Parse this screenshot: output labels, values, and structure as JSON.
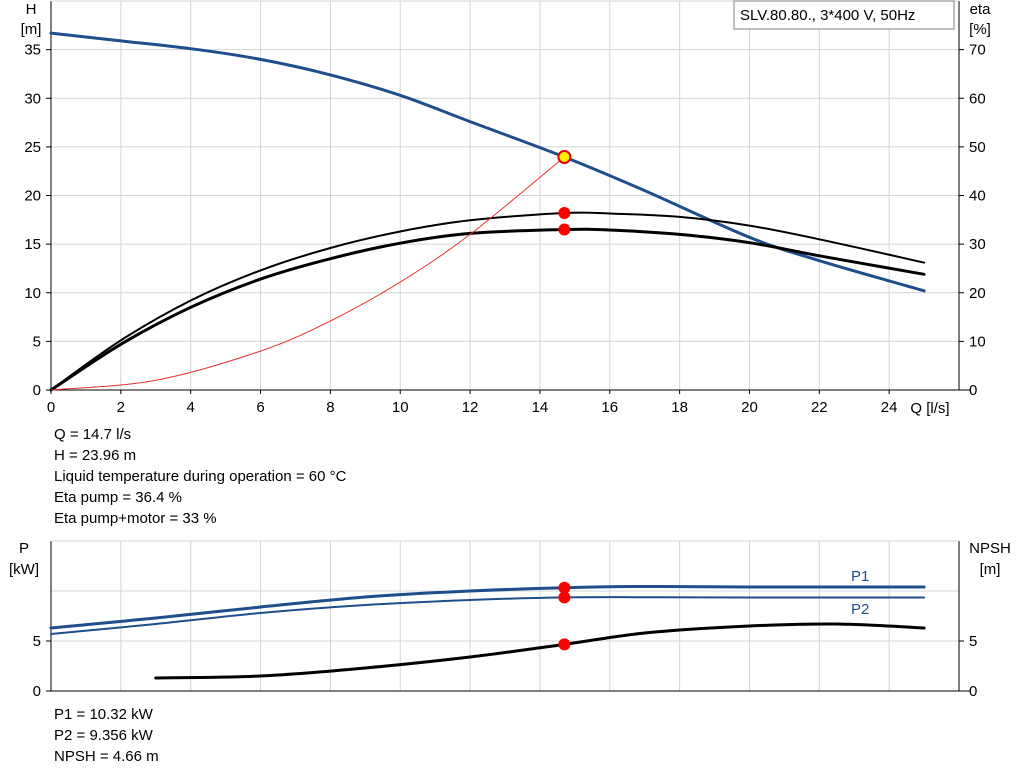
{
  "chart_data": [
    {
      "type": "line",
      "title": "SLV.80.80., 3*400 V, 50Hz",
      "xlabel": "Q [l/s]",
      "ylabel_left": [
        "H",
        "[m]"
      ],
      "ylabel_right": [
        "eta",
        "[%]"
      ],
      "xlim": [
        0,
        26
      ],
      "ylim_left": [
        0,
        40
      ],
      "ylim_right": [
        0,
        80
      ],
      "xticks": [
        "0",
        "2",
        "4",
        "6",
        "8",
        "10",
        "12",
        "14",
        "16",
        "18",
        "20",
        "22",
        "24"
      ],
      "yticks_left": [
        "0",
        "5",
        "10",
        "15",
        "20",
        "25",
        "30",
        "35"
      ],
      "yticks_right": [
        "0",
        "10",
        "20",
        "30",
        "40",
        "50",
        "60",
        "70"
      ],
      "grid": true,
      "series": [
        {
          "key": "head",
          "axis": "left",
          "color": "#1f4e8c",
          "x": [
            0,
            2,
            4,
            6,
            8,
            10,
            12,
            14.7,
            17,
            20,
            22,
            25
          ],
          "y": [
            36.7,
            35.9,
            35.1,
            34.0,
            32.4,
            30.3,
            27.6,
            23.96,
            20.5,
            15.7,
            13.3,
            10.2
          ]
        },
        {
          "key": "eta_pump",
          "axis": "right",
          "color": "#000000",
          "x": [
            0,
            2,
            4,
            6,
            8,
            10,
            12,
            14.7,
            16,
            18,
            20,
            22,
            25
          ],
          "y": [
            0,
            10.2,
            18.4,
            24.6,
            29.2,
            32.6,
            34.9,
            36.4,
            36.3,
            35.6,
            33.8,
            31.0,
            26.2
          ]
        },
        {
          "key": "eta_total",
          "axis": "right",
          "color": "#000000",
          "x": [
            0,
            2,
            4,
            6,
            8,
            10,
            12,
            14.7,
            16,
            18,
            20,
            22,
            25
          ],
          "y": [
            0,
            9.4,
            17.0,
            22.8,
            27.0,
            30.2,
            32.2,
            33.0,
            32.9,
            32.0,
            30.3,
            27.6,
            23.8
          ]
        },
        {
          "key": "system",
          "axis": "left",
          "color": "#e83030",
          "x": [
            0,
            3,
            6,
            8,
            10,
            12,
            14.7
          ],
          "y": [
            0,
            1.0,
            4.0,
            7.1,
            11.1,
            16.0,
            23.96
          ]
        }
      ],
      "points": [
        {
          "key": "duty",
          "axis": "left",
          "x": 14.7,
          "y": 23.96,
          "fill": "#ffef00",
          "stroke": "#e00000"
        },
        {
          "key": "eta_pump_pt",
          "axis": "right",
          "x": 14.7,
          "y": 36.4,
          "fill": "#ff0000",
          "stroke": "#ff0000"
        },
        {
          "key": "eta_total_pt",
          "axis": "right",
          "x": 14.7,
          "y": 33.0,
          "fill": "#ff0000",
          "stroke": "#ff0000"
        }
      ]
    },
    {
      "type": "line",
      "ylabel_left": [
        "P",
        "[kW]"
      ],
      "ylabel_right": [
        "NPSH",
        "[m]"
      ],
      "xlim": [
        0,
        26
      ],
      "ylim_left": [
        0,
        15
      ],
      "ylim_right": [
        0,
        15
      ],
      "yticks_left": [
        "0",
        "5"
      ],
      "yticks_right": [
        "0",
        "5"
      ],
      "grid": true,
      "series": [
        {
          "key": "p1",
          "name": "P1",
          "axis": "left",
          "color": "#1f4e8c",
          "x": [
            0,
            3,
            6,
            9,
            12,
            14.7,
            17,
            20,
            25
          ],
          "y": [
            6.3,
            7.3,
            8.4,
            9.4,
            10.0,
            10.32,
            10.45,
            10.4,
            10.4
          ]
        },
        {
          "key": "p2",
          "name": "P2",
          "axis": "left",
          "color": "#1f4e8c",
          "x": [
            0,
            3,
            6,
            9,
            12,
            14.7,
            17,
            20,
            25
          ],
          "y": [
            5.7,
            6.7,
            7.8,
            8.6,
            9.1,
            9.356,
            9.38,
            9.35,
            9.35
          ]
        },
        {
          "key": "npsh",
          "axis": "right",
          "color": "#000000",
          "x": [
            3,
            6,
            9,
            12,
            14.7,
            17,
            20,
            22.5,
            25
          ],
          "y": [
            1.3,
            1.5,
            2.3,
            3.4,
            4.66,
            5.8,
            6.5,
            6.7,
            6.3
          ]
        }
      ],
      "points": [
        {
          "key": "p1_pt",
          "axis": "left",
          "x": 14.7,
          "y": 10.32,
          "fill": "#ff0000",
          "stroke": "#ff0000"
        },
        {
          "key": "p2_pt",
          "axis": "left",
          "x": 14.7,
          "y": 9.356,
          "fill": "#ff0000",
          "stroke": "#ff0000"
        },
        {
          "key": "npsh_pt",
          "axis": "right",
          "x": 14.7,
          "y": 4.66,
          "fill": "#ff0000",
          "stroke": "#ff0000"
        }
      ]
    }
  ],
  "info": {
    "q": "Q = 14.7 l/s",
    "h": "H = 23.96 m",
    "temp": "Liquid temperature during operation = 60 °C",
    "eta_pump": "Eta pump = 36.4 %",
    "eta_total": "Eta pump+motor = 33 %",
    "p1": "P1 = 10.32 kW",
    "p2": "P2 = 9.356 kW",
    "npsh": "NPSH = 4.66 m"
  }
}
